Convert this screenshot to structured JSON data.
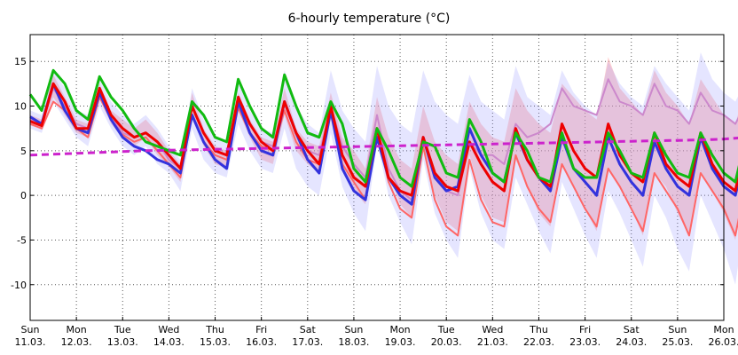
{
  "chart_data": {
    "type": "line",
    "title": "6-hourly temperature (°C)",
    "xlabel": "",
    "ylabel": "",
    "ylim": [
      -14,
      18
    ],
    "yticks": [
      -10,
      -5,
      0,
      5,
      10,
      15
    ],
    "grid": true,
    "legend": "none",
    "day_labels": [
      {
        "day": "Sun",
        "date": "11.03."
      },
      {
        "day": "Mon",
        "date": "12.03."
      },
      {
        "day": "Tue",
        "date": "13.03."
      },
      {
        "day": "Wed",
        "date": "14.03."
      },
      {
        "day": "Thu",
        "date": "15.03."
      },
      {
        "day": "Fri",
        "date": "16.03."
      },
      {
        "day": "Sat",
        "date": "17.03."
      },
      {
        "day": "Sun",
        "date": "18.03."
      },
      {
        "day": "Mon",
        "date": "19.03."
      },
      {
        "day": "Tue",
        "date": "20.03."
      },
      {
        "day": "Wed",
        "date": "21.03."
      },
      {
        "day": "Thu",
        "date": "22.03."
      },
      {
        "day": "Fri",
        "date": "23.03."
      },
      {
        "day": "Sat",
        "date": "24.03."
      },
      {
        "day": "Sun",
        "date": "25.03."
      },
      {
        "day": "Mon",
        "date": "26.03."
      }
    ],
    "x_step_hours": 6,
    "bands": [
      {
        "color": "#ff9999",
        "opacity": 0.45,
        "lower": [
          7.8,
          7.5,
          11.0,
          9.0,
          7.0,
          6.5,
          10.8,
          8.0,
          6.5,
          5.5,
          6.5,
          4.5,
          3.2,
          1.5,
          9.0,
          5.5,
          3.5,
          3.0,
          9.5,
          6.5,
          4.0,
          3.5,
          9.0,
          5.0,
          3.5,
          2.5,
          8.5,
          3.0,
          0.5,
          -1.0,
          7.5,
          2.5,
          -1.0,
          -2.5,
          5.5,
          0.0,
          -3.0,
          -4.0,
          4.5,
          0.0,
          -2.5,
          -3.0,
          4.0,
          1.0,
          -2.0,
          -3.5,
          3.5,
          1.0,
          -1.5,
          -4.0,
          3.0,
          1.0,
          -1.5,
          -4.5,
          2.5,
          1.0,
          -2.0,
          -4.5,
          2.5,
          0.5,
          -2.0,
          -5.0,
          2.0
        ],
        "upper": [
          9.0,
          8.5,
          13.5,
          11.0,
          8.5,
          8.0,
          12.5,
          9.5,
          8.5,
          7.5,
          8.5,
          7.0,
          5.0,
          3.5,
          11.5,
          7.5,
          5.5,
          5.0,
          11.5,
          8.5,
          6.5,
          6.0,
          12.0,
          7.5,
          6.0,
          5.5,
          11.5,
          6.5,
          5.0,
          3.0,
          11.0,
          6.5,
          4.0,
          3.0,
          10.0,
          6.0,
          4.5,
          3.5,
          10.5,
          8.0,
          6.5,
          6.0,
          12.0,
          9.5,
          8.0,
          7.0,
          12.5,
          11.0,
          9.5,
          8.5,
          15.5,
          12.0,
          10.5,
          9.0,
          14.0,
          11.5,
          10.0,
          8.0,
          13.0,
          11.0,
          9.0,
          8.0,
          12.5
        ]
      },
      {
        "color": "#9999ff",
        "opacity": 0.25,
        "lower": [
          7.5,
          7.0,
          10.5,
          8.5,
          6.5,
          5.5,
          10.0,
          7.5,
          5.5,
          4.5,
          5.5,
          3.5,
          2.5,
          0.5,
          7.5,
          4.0,
          2.5,
          2.0,
          8.0,
          5.0,
          3.0,
          2.5,
          7.5,
          3.0,
          1.0,
          0.0,
          7.0,
          1.0,
          -2.0,
          -4.0,
          6.0,
          0.0,
          -3.0,
          -5.5,
          4.0,
          -2.0,
          -5.0,
          -7.0,
          3.0,
          -2.0,
          -5.0,
          -6.0,
          2.0,
          -1.0,
          -4.0,
          -6.5,
          1.5,
          -1.5,
          -4.5,
          -7.0,
          0.5,
          -2.0,
          -5.0,
          -8.0,
          0.0,
          -2.5,
          -6.0,
          -8.5,
          0.0,
          -3.0,
          -6.0,
          -10.0,
          -1.0
        ],
        "upper": [
          9.5,
          9.0,
          14.0,
          12.0,
          9.5,
          9.0,
          13.0,
          10.5,
          9.0,
          8.0,
          9.0,
          7.5,
          5.5,
          4.0,
          12.0,
          8.5,
          6.5,
          6.0,
          13.0,
          9.5,
          7.5,
          7.0,
          14.0,
          10.0,
          8.0,
          7.0,
          14.0,
          9.5,
          7.5,
          6.0,
          14.5,
          10.0,
          8.0,
          7.0,
          14.0,
          10.5,
          9.0,
          8.0,
          13.5,
          10.5,
          9.5,
          8.5,
          14.5,
          11.0,
          10.0,
          9.0,
          14.0,
          11.5,
          10.0,
          9.0,
          15.0,
          12.5,
          11.0,
          10.0,
          14.5,
          12.5,
          11.0,
          9.5,
          16.0,
          13.0,
          11.5,
          10.5,
          13.0
        ]
      }
    ],
    "series": [
      {
        "color": "#ff6666",
        "width": 2,
        "values": [
          8.0,
          7.5,
          10.5,
          9.5,
          7.5,
          6.5,
          11.0,
          8.5,
          6.8,
          6.0,
          6.5,
          5.0,
          3.5,
          2.0,
          9.0,
          6.0,
          4.5,
          4.0,
          9.8,
          7.0,
          5.5,
          5.0,
          9.5,
          6.0,
          4.0,
          3.5,
          9.2,
          3.5,
          1.5,
          -0.5,
          7.0,
          1.5,
          -1.5,
          -2.5,
          5.5,
          -0.5,
          -3.5,
          -4.5,
          4.0,
          -0.5,
          -3.0,
          -3.5,
          4.5,
          1.0,
          -1.5,
          -3.0,
          3.5,
          1.0,
          -1.5,
          -3.5,
          3.0,
          1.0,
          -1.5,
          -4.0,
          2.5,
          0.5,
          -1.5,
          -4.5,
          2.5,
          0.5,
          -1.5,
          -4.5,
          2.0
        ]
      },
      {
        "color": "#cc88cc",
        "width": 2,
        "values": [
          8.5,
          8.0,
          12.0,
          10.0,
          8.0,
          7.5,
          11.5,
          9.0,
          7.0,
          6.5,
          7.0,
          6.0,
          4.0,
          3.0,
          10.0,
          7.0,
          5.0,
          4.5,
          10.5,
          8.0,
          6.0,
          5.5,
          10.5,
          7.0,
          5.0,
          4.5,
          10.0,
          5.5,
          3.5,
          2.0,
          9.0,
          3.0,
          0.5,
          -0.5,
          6.5,
          2.5,
          0.5,
          0.0,
          6.0,
          4.5,
          4.5,
          3.5,
          8.0,
          6.5,
          7.0,
          8.0,
          12.0,
          10.0,
          9.5,
          9.0,
          13.0,
          10.5,
          10.0,
          9.0,
          12.5,
          10.0,
          9.5,
          8.0,
          11.5,
          9.5,
          9.0,
          8.0,
          10.5
        ]
      },
      {
        "color": "#3333dd",
        "width": 3,
        "values": [
          8.8,
          8.0,
          12.5,
          9.5,
          7.5,
          7.0,
          11.5,
          8.5,
          6.5,
          5.5,
          5.0,
          4.0,
          3.5,
          2.5,
          9.0,
          6.0,
          4.0,
          3.0,
          10.5,
          7.0,
          5.0,
          4.5,
          10.5,
          7.0,
          4.0,
          2.5,
          9.5,
          3.0,
          0.5,
          -0.5,
          6.5,
          2.0,
          0.0,
          -1.0,
          6.5,
          2.0,
          0.5,
          1.0,
          7.5,
          4.5,
          2.5,
          1.5,
          7.0,
          4.0,
          2.0,
          0.5,
          6.5,
          3.0,
          1.5,
          0.0,
          6.5,
          3.5,
          1.5,
          0.0,
          6.0,
          3.0,
          1.0,
          0.0,
          6.5,
          3.0,
          1.0,
          0.0,
          5.5
        ]
      },
      {
        "color": "#ee0000",
        "width": 3,
        "values": [
          8.3,
          7.8,
          12.5,
          10.5,
          7.5,
          7.5,
          12.0,
          9.0,
          7.5,
          6.5,
          7.0,
          6.0,
          4.5,
          3.0,
          10.0,
          7.0,
          5.0,
          4.5,
          11.0,
          8.0,
          6.0,
          5.0,
          10.5,
          7.0,
          5.0,
          3.5,
          10.0,
          4.5,
          2.0,
          1.0,
          7.5,
          2.0,
          0.5,
          0.0,
          6.5,
          2.5,
          1.0,
          0.5,
          6.0,
          3.5,
          1.5,
          0.5,
          7.5,
          4.0,
          2.0,
          1.0,
          8.0,
          5.0,
          3.0,
          2.0,
          8.0,
          4.5,
          2.5,
          1.5,
          7.0,
          3.5,
          2.0,
          1.0,
          7.0,
          3.5,
          1.5,
          0.5,
          6.5
        ]
      },
      {
        "color": "#11bb11",
        "width": 3,
        "values": [
          11.3,
          9.5,
          14.0,
          12.5,
          9.5,
          8.5,
          13.3,
          11.0,
          9.5,
          7.5,
          6.0,
          5.5,
          5.0,
          4.5,
          10.5,
          9.0,
          6.5,
          6.0,
          13.0,
          10.0,
          7.5,
          6.5,
          13.5,
          10.0,
          7.0,
          6.5,
          10.5,
          8.0,
          3.0,
          1.5,
          7.5,
          5.0,
          2.0,
          1.0,
          6.0,
          5.5,
          2.5,
          2.0,
          8.5,
          6.0,
          2.5,
          1.5,
          7.0,
          5.0,
          2.0,
          1.5,
          7.0,
          3.0,
          2.0,
          2.0,
          7.0,
          5.0,
          2.5,
          2.0,
          7.0,
          4.5,
          2.5,
          2.0,
          7.0,
          4.5,
          2.5,
          1.5,
          7.0
        ]
      },
      {
        "color": "#cc22cc",
        "width": 3,
        "dashed": true,
        "values": [
          4.5,
          4.55,
          4.6,
          4.65,
          4.7,
          4.75,
          4.8,
          4.85,
          4.9,
          4.95,
          5.0,
          5.02,
          5.05,
          5.08,
          5.1,
          5.13,
          5.15,
          5.18,
          5.2,
          5.23,
          5.25,
          5.28,
          5.3,
          5.33,
          5.35,
          5.38,
          5.4,
          5.43,
          5.45,
          5.48,
          5.5,
          5.53,
          5.55,
          5.58,
          5.6,
          5.63,
          5.65,
          5.68,
          5.7,
          5.73,
          5.75,
          5.78,
          5.8,
          5.83,
          5.85,
          5.88,
          5.9,
          5.93,
          5.95,
          5.98,
          6.0,
          6.03,
          6.05,
          6.08,
          6.1,
          6.13,
          6.15,
          6.18,
          6.2,
          6.25,
          6.3,
          6.4,
          6.5
        ]
      }
    ]
  }
}
